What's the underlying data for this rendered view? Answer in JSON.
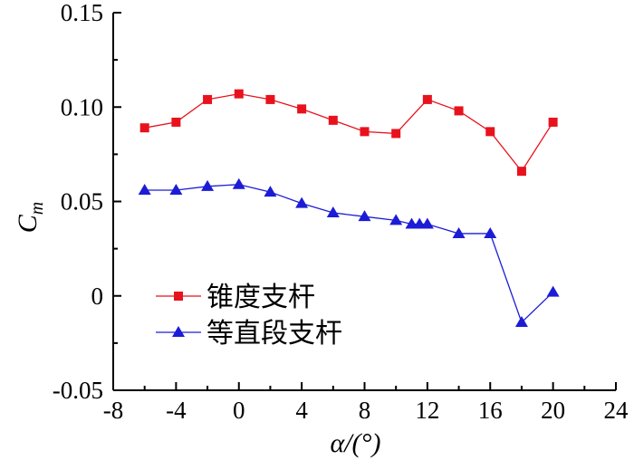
{
  "chart_data": {
    "type": "line",
    "xlabel": "α/(°)",
    "ylabel": "C_m",
    "xlim": [
      -8,
      24
    ],
    "ylim": [
      -0.05,
      0.15
    ],
    "x_ticks": [
      -8,
      -4,
      0,
      4,
      8,
      12,
      16,
      20,
      24
    ],
    "y_ticks": [
      -0.05,
      0,
      0.05,
      0.1,
      0.15
    ],
    "x_tick_labels": [
      "-8",
      "-4",
      "0",
      "4",
      "8",
      "12",
      "16",
      "20",
      "24"
    ],
    "y_tick_labels": [
      "-0.05",
      "0",
      "0.05",
      "0.10",
      "0.15"
    ],
    "grid": false,
    "legend_position": "lower-left",
    "series": [
      {
        "name": "锥度支杆",
        "color": "#e8121d",
        "marker": "square",
        "x": [
          -6,
          -4,
          -2,
          0,
          2,
          4,
          6,
          8,
          10,
          12,
          14,
          16,
          18,
          20
        ],
        "values": [
          0.089,
          0.092,
          0.104,
          0.107,
          0.104,
          0.099,
          0.093,
          0.087,
          0.086,
          0.104,
          0.098,
          0.087,
          0.066,
          0.092
        ]
      },
      {
        "name": "等直段支杆",
        "color": "#1c1cd6",
        "marker": "triangle",
        "x": [
          -6,
          -4,
          -2,
          0,
          2,
          4,
          6,
          8,
          10,
          11,
          11.5,
          12,
          14,
          16,
          18,
          20
        ],
        "values": [
          0.056,
          0.056,
          0.058,
          0.059,
          0.055,
          0.049,
          0.044,
          0.042,
          0.04,
          0.038,
          0.038,
          0.038,
          0.033,
          0.033,
          -0.014,
          0.002
        ]
      }
    ]
  }
}
